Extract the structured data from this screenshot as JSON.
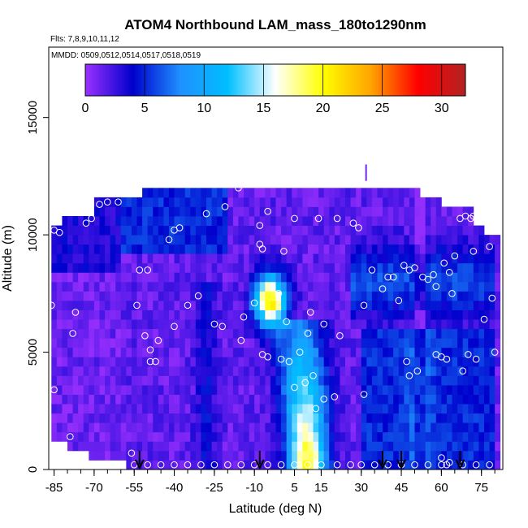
{
  "chart_data": {
    "type": "heatmap",
    "title": "ATOM4 Northbound LAM_mass_180to1290nm",
    "subtitle_flights": "Flts: 7,8,9,10,11,12",
    "subtitle_dates": "MMDD: 0509,0512,0514,0517,0518,0519",
    "xlabel": "Latitude (deg N)",
    "ylabel": "Altitude (m)",
    "xlim": [
      -87,
      83
    ],
    "ylim": [
      0,
      18000
    ],
    "x_ticks": [
      -85,
      -70,
      -55,
      -40,
      -25,
      -10,
      5,
      15,
      30,
      45,
      60,
      75
    ],
    "x_tick_labels": [
      "-85",
      "-70",
      "-55",
      "-40",
      "-25",
      "-10",
      "5",
      "15",
      "30",
      "45",
      "60",
      "75"
    ],
    "y_ticks": [
      0,
      5000,
      10000,
      15000
    ],
    "y_tick_labels": [
      "0",
      "5000",
      "10000",
      "15000"
    ],
    "colorbar": {
      "range": [
        0,
        32
      ],
      "ticks": [
        0,
        5,
        10,
        15,
        20,
        25,
        30
      ],
      "tick_labels": [
        "0",
        "5",
        "10",
        "15",
        "20",
        "25",
        "30"
      ],
      "colors": [
        "#9b30ff",
        "#0000cd",
        "#1e90ff",
        "#00bfff",
        "#ffffff",
        "#ffff00",
        "#ffa500",
        "#ff0000",
        "#b22222"
      ]
    },
    "profile_arrows_lat": [
      -53,
      -8,
      38,
      45,
      67
    ],
    "sample_points": [
      [
        -85,
        600
      ],
      [
        -85,
        3400
      ],
      [
        -86,
        7000
      ],
      [
        -85,
        10200
      ],
      [
        -83,
        10100
      ],
      [
        -79,
        1400
      ],
      [
        -77,
        6700
      ],
      [
        -78,
        5800
      ],
      [
        -73,
        10500
      ],
      [
        -71,
        10700
      ],
      [
        -68,
        11300
      ],
      [
        -65,
        11400
      ],
      [
        -61,
        11400
      ],
      [
        -56,
        700
      ],
      [
        -53,
        8500
      ],
      [
        -54,
        7000
      ],
      [
        -51,
        5700
      ],
      [
        -50,
        8500
      ],
      [
        -49,
        5100
      ],
      [
        -49,
        4600
      ],
      [
        -47,
        4600
      ],
      [
        -46,
        5500
      ],
      [
        -42,
        9800
      ],
      [
        -40,
        10200
      ],
      [
        -40,
        6100
      ],
      [
        -38,
        10300
      ],
      [
        -40,
        200
      ],
      [
        -35,
        7000
      ],
      [
        -31,
        7400
      ],
      [
        -28,
        10900
      ],
      [
        -25,
        6200
      ],
      [
        -21,
        11200
      ],
      [
        -22,
        6100
      ],
      [
        -16,
        12000
      ],
      [
        -15,
        5500
      ],
      [
        -14,
        6500
      ],
      [
        -10,
        7100
      ],
      [
        -8,
        10400
      ],
      [
        -8,
        9600
      ],
      [
        -7,
        9400
      ],
      [
        -5,
        11000
      ],
      [
        -1,
        7500
      ],
      [
        1,
        9300
      ],
      [
        2,
        6300
      ],
      [
        5,
        10700
      ],
      [
        10,
        5800
      ],
      [
        11,
        6700
      ],
      [
        14,
        10700
      ],
      [
        16,
        6200
      ],
      [
        21,
        10700
      ],
      [
        22,
        5700
      ],
      [
        27,
        10500
      ],
      [
        29,
        10300
      ],
      [
        31,
        7000
      ],
      [
        34,
        8500
      ],
      [
        38,
        7700
      ],
      [
        40,
        8200
      ],
      [
        42,
        8200
      ],
      [
        44,
        7200
      ],
      [
        46,
        8700
      ],
      [
        48,
        8500
      ],
      [
        50,
        8600
      ],
      [
        53,
        8200
      ],
      [
        55,
        8100
      ],
      [
        57,
        8300
      ],
      [
        58,
        7800
      ],
      [
        61,
        8800
      ],
      [
        63,
        8400
      ],
      [
        64,
        7500
      ],
      [
        65,
        9100
      ],
      [
        67,
        10700
      ],
      [
        69,
        10800
      ],
      [
        71,
        10700
      ],
      [
        72,
        10800
      ],
      [
        74,
        10800
      ],
      [
        72,
        9300
      ],
      [
        78,
        9500
      ],
      [
        79,
        7300
      ],
      [
        80,
        5000
      ],
      [
        76,
        6400
      ],
      [
        70,
        4900
      ],
      [
        73,
        4700
      ],
      [
        68,
        4200
      ],
      [
        62,
        4700
      ],
      [
        60,
        4800
      ],
      [
        58,
        4900
      ],
      [
        47,
        4600
      ],
      [
        51,
        4200
      ],
      [
        48,
        4000
      ],
      [
        31,
        3200
      ],
      [
        20,
        3100
      ],
      [
        16,
        3000
      ],
      [
        12,
        4000
      ],
      [
        0,
        4700
      ],
      [
        3,
        4600
      ],
      [
        7,
        5000
      ],
      [
        -5,
        4800
      ],
      [
        -7,
        4900
      ],
      [
        5,
        3500
      ],
      [
        9,
        3700
      ],
      [
        13,
        2600
      ],
      [
        21,
        200
      ],
      [
        26,
        200
      ],
      [
        30,
        200
      ],
      [
        35,
        200
      ],
      [
        40,
        200
      ],
      [
        45,
        200
      ],
      [
        50,
        200
      ],
      [
        55,
        200
      ],
      [
        60,
        200
      ],
      [
        63,
        300
      ],
      [
        68,
        200
      ],
      [
        73,
        200
      ],
      [
        78,
        200
      ],
      [
        -55,
        200
      ],
      [
        -50,
        200
      ],
      [
        -45,
        200
      ],
      [
        -35,
        200
      ],
      [
        -30,
        200
      ],
      [
        -25,
        200
      ],
      [
        -20,
        200
      ],
      [
        -15,
        200
      ],
      [
        -10,
        200
      ],
      [
        -5,
        200
      ],
      [
        0,
        200
      ],
      [
        5,
        200
      ],
      [
        10,
        200
      ],
      [
        15,
        200
      ],
      [
        60,
        500
      ],
      [
        62,
        200
      ]
    ]
  }
}
